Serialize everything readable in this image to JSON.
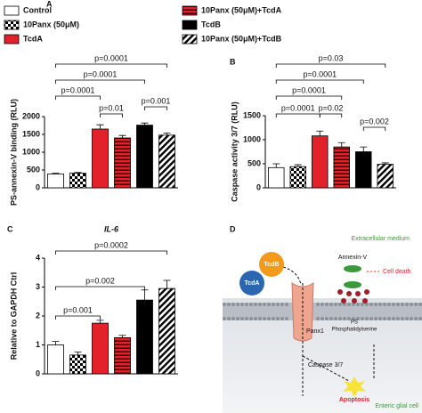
{
  "legend": {
    "entries": [
      {
        "name": "Control",
        "color": "#ffffff"
      },
      {
        "name": "10Panx (50μM)",
        "color": "#000000",
        "pattern": "checker"
      },
      {
        "name": "TcdA",
        "color": "#e3212a"
      },
      {
        "name": "10Panx (50μM)+TcdA",
        "color": "#e3212a",
        "pattern": "hstripe"
      },
      {
        "name": "TcdB",
        "color": "#000000"
      },
      {
        "name": "10Panx (50μM)+TcdB",
        "color": "#000000",
        "pattern": "diagonal"
      }
    ]
  },
  "chart_data": [
    {
      "type": "bar",
      "panel": "A",
      "ylabel": "PS-annexin-V binding (RLU)",
      "values": [
        390,
        410,
        1650,
        1400,
        1760,
        1480
      ],
      "errors": [
        20,
        20,
        120,
        70,
        60,
        60
      ],
      "ylim": [
        0,
        2000
      ],
      "yticks": [
        0,
        500,
        1000,
        1500,
        2000
      ],
      "comparisons": [
        {
          "label": "p=0.0001",
          "from": 0,
          "to": 5
        },
        {
          "label": "p=0.0001",
          "from": 0,
          "to": 4
        },
        {
          "label": "p=0.0001",
          "from": 0,
          "to": 2
        },
        {
          "label": "p=0.01",
          "from": 2,
          "to": 3
        },
        {
          "label": "p=0.001",
          "from": 4,
          "to": 5
        }
      ]
    },
    {
      "type": "bar",
      "panel": "B",
      "ylabel": "Caspase activity 3/7 (RLU)",
      "values": [
        420,
        440,
        1080,
        850,
        750,
        490
      ],
      "errors": [
        80,
        40,
        100,
        90,
        100,
        30
      ],
      "ylim": [
        0,
        1500
      ],
      "yticks": [
        0,
        500,
        1000,
        1500
      ],
      "comparisons": [
        {
          "label": "p=0.03",
          "from": 0,
          "to": 5
        },
        {
          "label": "p=0.0001",
          "from": 0,
          "to": 4
        },
        {
          "label": "p=0.0001",
          "from": 0,
          "to": 3
        },
        {
          "label": "p=0.0001",
          "from": 0,
          "to": 2
        },
        {
          "label": "p=0.02",
          "from": 2,
          "to": 3
        },
        {
          "label": "p=0.002",
          "from": 4,
          "to": 5
        }
      ]
    },
    {
      "type": "bar",
      "panel": "C",
      "title": "IL-6",
      "ylabel": "Relative to GAPDH Ctrl",
      "values": [
        1.0,
        0.65,
        1.75,
        1.25,
        2.55,
        2.95
      ],
      "errors": [
        0.12,
        0.1,
        0.1,
        0.08,
        0.35,
        0.28
      ],
      "ylim": [
        0,
        4
      ],
      "yticks": [
        0,
        1,
        2,
        3,
        4
      ],
      "comparisons": [
        {
          "label": "p=0.0002",
          "from": 0,
          "to": 5
        },
        {
          "label": "p=0.002",
          "from": 0,
          "to": 4
        },
        {
          "label": "p=0.001",
          "from": 0,
          "to": 2
        }
      ]
    }
  ],
  "diagram": {
    "panel": "D",
    "extracellular": "Extracellular medium",
    "toxin_b": "TcdB",
    "toxin_a": "TcdA",
    "annexin": "Annexin-V",
    "cell_death": "Cell death",
    "channel": "Panx1",
    "ps": "PS",
    "ps_full": "Phosphatidylserine",
    "caspase": "Caspase 3/7",
    "apoptosis": "Apoptosis",
    "cell": "Enteric glial cell"
  }
}
